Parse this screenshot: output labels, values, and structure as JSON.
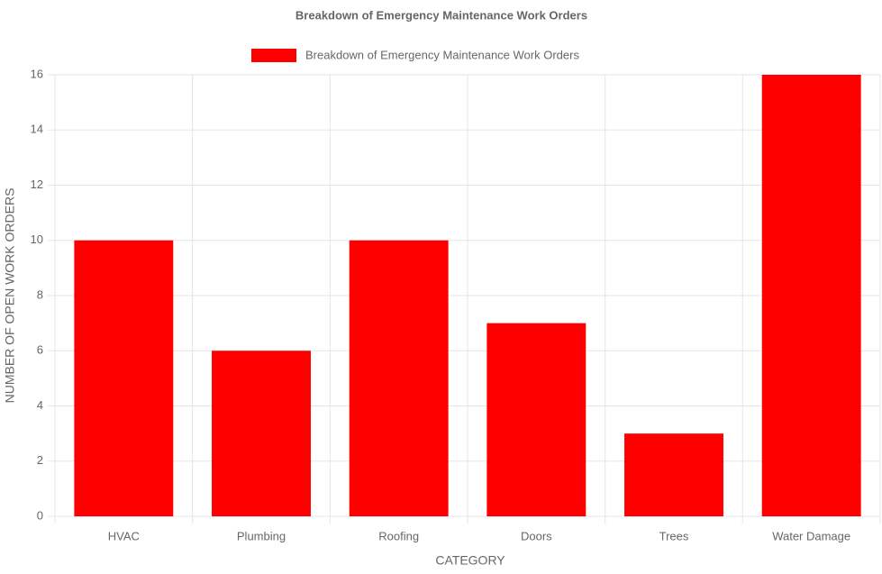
{
  "chart_data": {
    "type": "bar",
    "title": "Breakdown of Emergency Maintenance Work Orders",
    "x_label": "CATEGORY",
    "y_label": "NUMBER OF OPEN WORK ORDERS",
    "categories": [
      "HVAC",
      "Plumbing",
      "Roofing",
      "Doors",
      "Trees",
      "Water Damage"
    ],
    "series": [
      {
        "name": "Breakdown of Emergency Maintenance Work Orders",
        "color": "#ff0000",
        "values": [
          10,
          6,
          10,
          7,
          3,
          16
        ]
      }
    ],
    "ylim": [
      0,
      16
    ],
    "yticks": [
      0,
      2,
      4,
      6,
      8,
      10,
      12,
      14,
      16
    ],
    "grid": true,
    "legend": "top"
  }
}
